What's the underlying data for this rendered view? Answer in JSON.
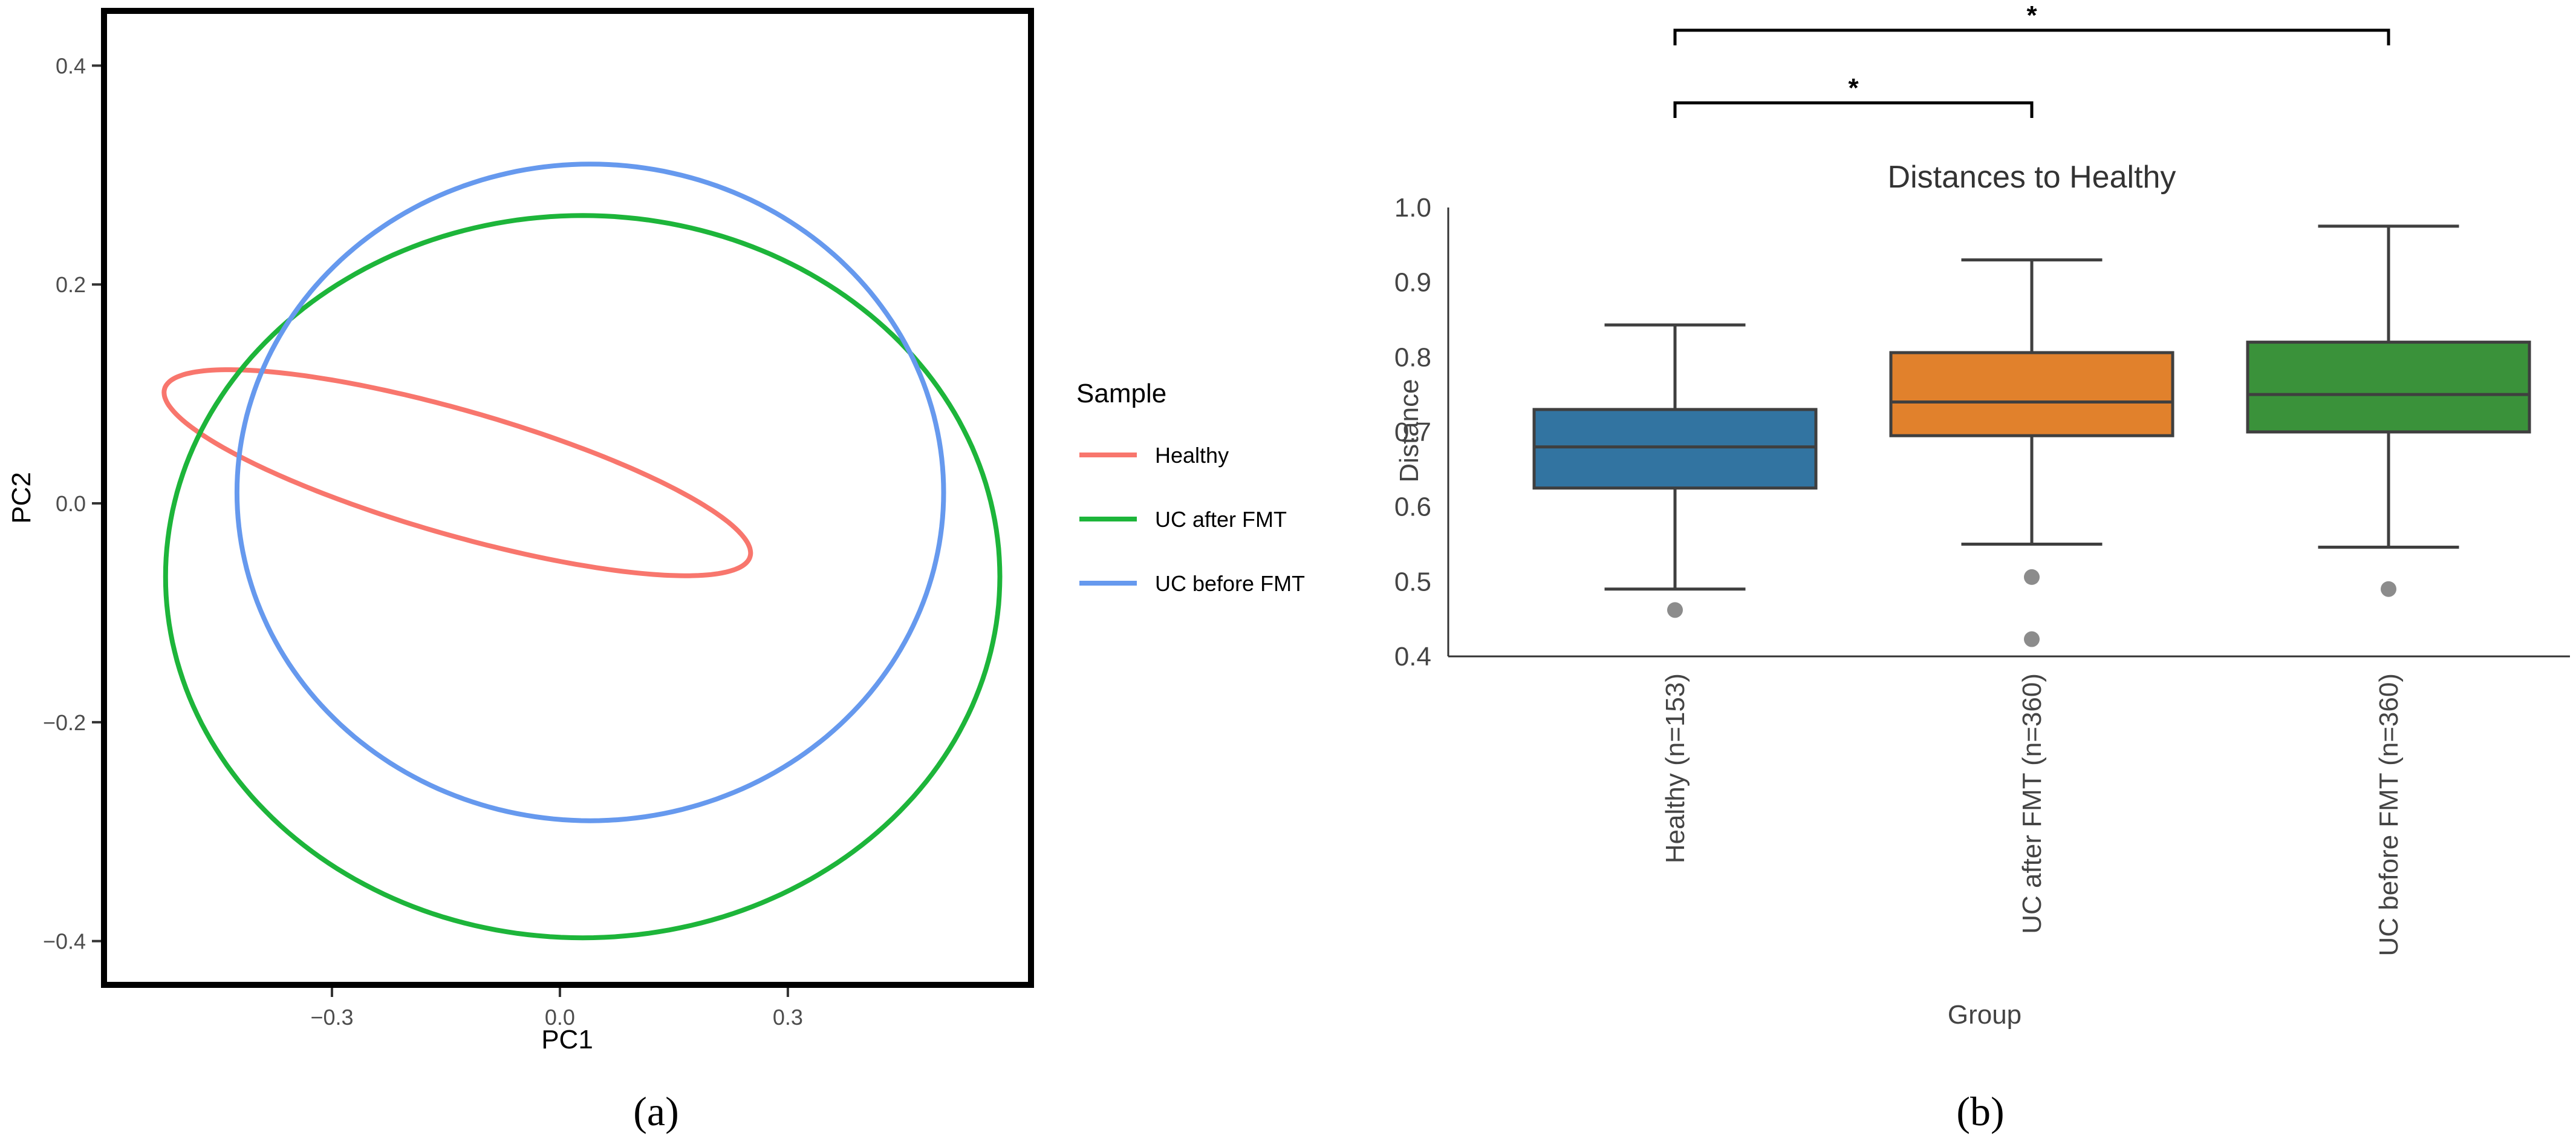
{
  "chart_data": [
    {
      "panel_label": "(a)",
      "type": "scatter",
      "subtype": "confidence-ellipses",
      "xlabel": "PC1",
      "ylabel": "PC2",
      "xlim": [
        -0.6,
        0.62
      ],
      "ylim": [
        -0.44,
        0.45
      ],
      "xticks": [
        -0.3,
        0.0,
        0.3
      ],
      "xtick_labels": [
        "−0.3",
        "0.0",
        "0.3"
      ],
      "yticks": [
        -0.4,
        -0.2,
        0.0,
        0.2,
        0.4
      ],
      "ytick_labels": [
        "−0.4",
        "−0.2",
        "0.0",
        "0.2",
        "0.4"
      ],
      "grid": false,
      "legend": {
        "title": "Sample",
        "placement": "right",
        "entries": [
          {
            "label": "Healthy",
            "color": "#F8766D"
          },
          {
            "label": "UC after FMT",
            "color": "#1DB53A"
          },
          {
            "label": "UC before FMT",
            "color": "#6699EE"
          }
        ]
      },
      "series": [
        {
          "name": "Healthy",
          "color": "#F8766D",
          "center": [
            -0.135,
            0.028
          ],
          "rx": 0.058,
          "ry": 0.393,
          "angle_deg": 79
        },
        {
          "name": "UC after FMT",
          "color": "#1DB53A",
          "center": [
            0.03,
            -0.067
          ],
          "rx": 0.549,
          "ry": 0.33,
          "angle_deg": 0
        },
        {
          "name": "UC before FMT",
          "color": "#6699EE",
          "center": [
            0.04,
            0.01
          ],
          "rx": 0.465,
          "ry": 0.3,
          "angle_deg": 0
        }
      ]
    },
    {
      "panel_label": "(b)",
      "type": "box",
      "title": "Distances to Healthy",
      "xlabel": "Group",
      "ylabel": "Distance",
      "ylim": [
        0.4,
        1.0
      ],
      "yticks": [
        0.4,
        0.5,
        0.6,
        0.7,
        0.8,
        0.9,
        1.0
      ],
      "ytick_labels": [
        "0.4",
        "0.5",
        "0.6",
        "0.7",
        "0.8",
        "0.9",
        "1.0"
      ],
      "grid": false,
      "categories": [
        "Healthy (n=153)",
        "UC after FMT (n=360)",
        "UC before FMT (n=360)"
      ],
      "series": [
        {
          "name": "Healthy (n=153)",
          "color": "#3274A1",
          "whisker_low": 0.49,
          "q1": 0.625,
          "median": 0.68,
          "q3": 0.73,
          "whisker_high": 0.843,
          "outliers": [
            0.462
          ]
        },
        {
          "name": "UC after FMT (n=360)",
          "color": "#E1812C",
          "whisker_low": 0.55,
          "q1": 0.695,
          "median": 0.74,
          "q3": 0.806,
          "whisker_high": 0.93,
          "outliers": [
            0.506,
            0.423
          ]
        },
        {
          "name": "UC before FMT (n=360)",
          "color": "#3A923A",
          "whisker_low": 0.546,
          "q1": 0.7,
          "median": 0.75,
          "q3": 0.82,
          "whisker_high": 0.975,
          "outliers": [
            0.49
          ]
        }
      ],
      "significance_brackets": [
        {
          "from": 0,
          "to": 1,
          "label": "*"
        },
        {
          "from": 0,
          "to": 2,
          "label": "*"
        }
      ]
    }
  ]
}
